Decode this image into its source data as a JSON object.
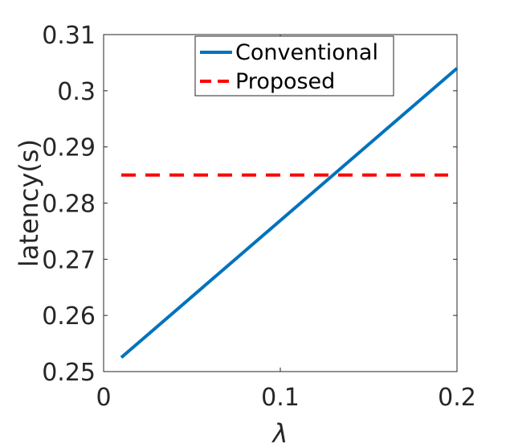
{
  "chart_data": {
    "type": "line",
    "xlabel": "λ",
    "ylabel": "latency(s)",
    "xlim": [
      0,
      0.2
    ],
    "ylim": [
      0.25,
      0.31
    ],
    "xticks": [
      "0",
      "0.1",
      "0.2"
    ],
    "yticks": [
      "0.25",
      "0.26",
      "0.27",
      "0.28",
      "0.29",
      "0.3",
      "0.31"
    ],
    "grid": false,
    "legend_position": "top-center",
    "series": [
      {
        "name": "Conventional",
        "color": "#0072bd",
        "style": "solid",
        "x": [
          0.01,
          0.2
        ],
        "y": [
          0.2525,
          0.304
        ]
      },
      {
        "name": "Proposed",
        "color": "#ff0000",
        "style": "dashed",
        "x": [
          0.01,
          0.195
        ],
        "y": [
          0.285,
          0.285
        ]
      }
    ]
  }
}
